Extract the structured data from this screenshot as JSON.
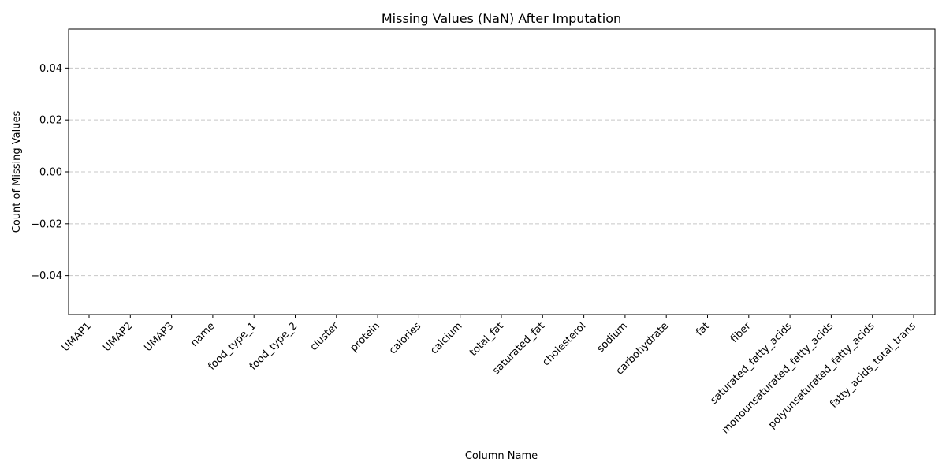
{
  "chart_data": {
    "type": "bar",
    "title": "Missing Values (NaN) After Imputation",
    "xlabel": "Column Name",
    "ylabel": "Count of Missing Values",
    "categories": [
      "UMAP1",
      "UMAP2",
      "UMAP3",
      "name",
      "food_type_1",
      "food_type_2",
      "cluster",
      "protein",
      "calories",
      "calcium",
      "total_fat",
      "saturated_fat",
      "cholesterol",
      "sodium",
      "carbohydrate",
      "fat",
      "fiber",
      "saturated_fatty_acids",
      "monounsaturated_fatty_acids",
      "polyunsaturated_fatty_acids",
      "fatty_acids_total_trans"
    ],
    "values": [
      0,
      0,
      0,
      0,
      0,
      0,
      0,
      0,
      0,
      0,
      0,
      0,
      0,
      0,
      0,
      0,
      0,
      0,
      0,
      0,
      0
    ],
    "ylim": [
      -0.055,
      0.055
    ],
    "yticks": [
      0.04,
      0.02,
      0.0,
      -0.02,
      -0.04
    ],
    "ytick_labels": [
      "0.04",
      "0.02",
      "0.00",
      "−0.02",
      "−0.04"
    ],
    "grid": "y-dashed",
    "bar_color": "#4c72b0"
  }
}
